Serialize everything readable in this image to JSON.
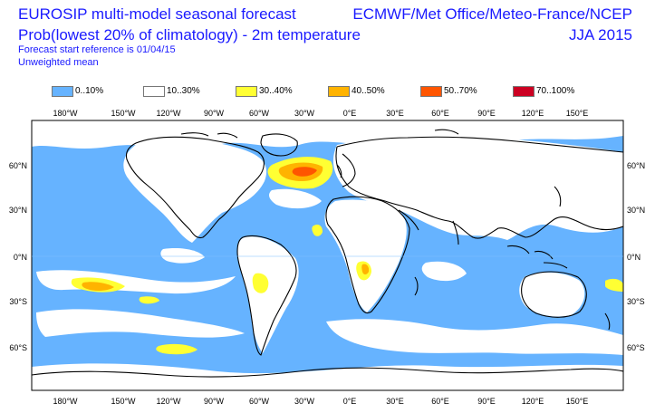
{
  "header": {
    "title": "EUROSIP multi-model seasonal forecast",
    "subtitle": "Prob(lowest 20% of climatology) - 2m temperature",
    "start_ref": "Forecast start reference is 01/04/15",
    "mean": "Unweighted mean",
    "centres": "ECMWF/Met Office/Meteo-France/NCEP",
    "season": "JJA 2015"
  },
  "legend": [
    {
      "label": "0..10%",
      "color": "#66b3ff"
    },
    {
      "label": "10..30%",
      "color": "#ffffff"
    },
    {
      "label": "30..40%",
      "color": "#ffff33"
    },
    {
      "label": "40..50%",
      "color": "#ffb300"
    },
    {
      "label": "50..70%",
      "color": "#ff5500"
    },
    {
      "label": "70..100%",
      "color": "#cc0022"
    }
  ],
  "axes": {
    "lon_labels": [
      "180°W",
      "150°W",
      "120°W",
      "90°W",
      "60°W",
      "30°W",
      "0°E",
      "30°E",
      "60°E",
      "90°E",
      "120°E",
      "150°E"
    ],
    "lat_labels": [
      "60°N",
      "30°N",
      "0°N",
      "30°S",
      "60°S"
    ]
  },
  "colors": {
    "ocean": "#66b3ff",
    "land": "#ffffff",
    "coast": "#000000",
    "grid": "#7fbfff"
  }
}
